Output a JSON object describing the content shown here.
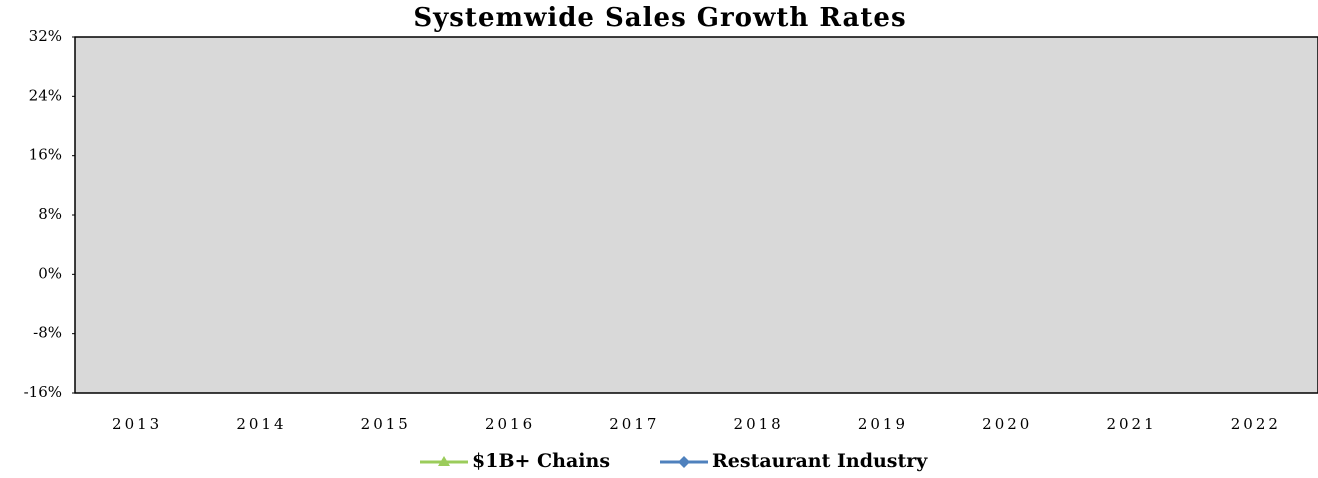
{
  "chart_data": {
    "type": "line",
    "title": "Systemwide Sales Growth Rates",
    "categories": [
      "2013",
      "2014",
      "2015",
      "2016",
      "2017",
      "2018",
      "2019",
      "2020",
      "2021",
      "2022"
    ],
    "series": [
      {
        "name": "$1B+ Chains",
        "color": "#9bcc5b",
        "marker": "triangle",
        "values": [
          null,
          null,
          null,
          null,
          null,
          null,
          null,
          null,
          null,
          null
        ]
      },
      {
        "name": "Restaurant Industry",
        "color": "#4f81bd",
        "marker": "diamond",
        "values": [
          null,
          null,
          null,
          null,
          null,
          null,
          null,
          null,
          null,
          null
        ]
      }
    ],
    "ylim": [
      -16,
      32
    ],
    "yticks": [
      {
        "value": -16,
        "label": "-16%"
      },
      {
        "value": -8,
        "label": "-8%"
      },
      {
        "value": 0,
        "label": "0%"
      },
      {
        "value": 8,
        "label": "8%"
      },
      {
        "value": 16,
        "label": "16%"
      },
      {
        "value": 24,
        "label": "24%"
      },
      {
        "value": 32,
        "label": "32%"
      }
    ],
    "plot_background": "#d9d9d9",
    "grid": false,
    "legend": "bottom"
  }
}
